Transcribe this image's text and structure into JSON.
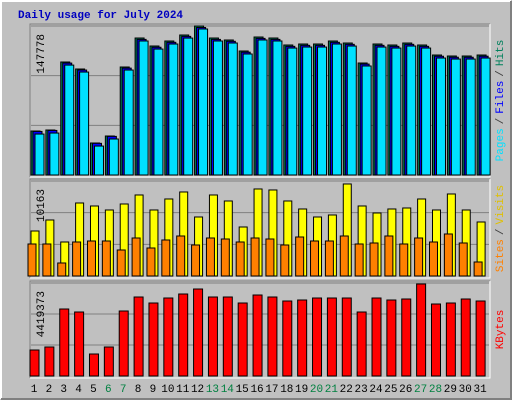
{
  "title": "Daily usage for July 2024",
  "legend_separator": "/",
  "chart_data": [
    {
      "type": "bar",
      "ylim": [
        0,
        147778
      ],
      "yticks": [
        147778
      ],
      "series": [
        {
          "name": "Pages",
          "color": "#00e0ff",
          "values": [
            40600,
            41600,
            109000,
            102100,
            28700,
            35700,
            104100,
            132900,
            124900,
            129900,
            135800,
            144800,
            132900,
            130900,
            120000,
            133900,
            132900,
            125900,
            126900,
            126900,
            129900,
            127900,
            108100,
            126900,
            125900,
            127900,
            125900,
            116000,
            115000,
            115000,
            116000
          ]
        },
        {
          "name": "Files",
          "color": "#0000ff",
          "values": [
            43200,
            44200,
            111000,
            104100,
            31400,
            38300,
            106000,
            134500,
            126700,
            131600,
            137500,
            146300,
            134500,
            132600,
            121800,
            135500,
            134500,
            127600,
            128600,
            128600,
            131600,
            129600,
            110000,
            128600,
            127600,
            129600,
            127600,
            117800,
            116800,
            116800,
            117800
          ]
        },
        {
          "name": "Hits",
          "color": "#00805c",
          "values": [
            43640,
            44630,
            112070,
            105130,
            31740,
            38680,
            107110,
            135870,
            127940,
            132900,
            138850,
            147778,
            135870,
            133890,
            122980,
            136860,
            135870,
            128930,
            129920,
            129920,
            132900,
            130910,
            111080,
            129920,
            128930,
            130910,
            128930,
            119010,
            118020,
            118020,
            119010
          ]
        }
      ]
    },
    {
      "type": "bar",
      "ylim": [
        0,
        10163
      ],
      "yticks": [
        10163
      ],
      "series": [
        {
          "name": "Sites",
          "color": "#ff8000",
          "values": [
            3424,
            3424,
            1391,
            3638,
            3745,
            3745,
            2782,
            4066,
            2996,
            3852,
            4280,
            3317,
            4066,
            3959,
            3638,
            4066,
            3959,
            3317,
            4173,
            3745,
            3745,
            4280,
            3424,
            3531,
            4280,
            3424,
            4066,
            3638,
            4494,
            3531,
            1498
          ]
        },
        {
          "name": "Visits",
          "color": "#ffff00",
          "values": [
            4815,
            5992,
            3638,
            7811,
            7490,
            7062,
            7704,
            8667,
            7062,
            8239,
            8988,
            6313,
            8667,
            8025,
            5243,
            9309,
            9202,
            8025,
            7169,
            6313,
            6527,
            9844,
            7490,
            6741,
            7169,
            7276,
            8239,
            7062,
            8774,
            7062,
            5778
          ]
        }
      ]
    },
    {
      "type": "bar",
      "ylim": [
        0,
        4419373
      ],
      "yticks": [
        4419373
      ],
      "categories": [
        "1",
        "2",
        "3",
        "4",
        "5",
        "6",
        "7",
        "8",
        "9",
        "10",
        "11",
        "12",
        "13",
        "14",
        "15",
        "16",
        "17",
        "18",
        "19",
        "20",
        "21",
        "22",
        "23",
        "24",
        "25",
        "26",
        "27",
        "28",
        "29",
        "30",
        "31"
      ],
      "category_colors": [
        "#000000",
        "#000000",
        "#000000",
        "#000000",
        "#000000",
        "#008040",
        "#008040",
        "#000000",
        "#000000",
        "#000000",
        "#000000",
        "#000000",
        "#008040",
        "#008040",
        "#000000",
        "#000000",
        "#000000",
        "#000000",
        "#000000",
        "#008040",
        "#008040",
        "#000000",
        "#000000",
        "#000000",
        "#000000",
        "#000000",
        "#008040",
        "#008040",
        "#000000",
        "#000000",
        "#000000"
      ],
      "series": [
        {
          "name": "KBytes",
          "color": "#ff0000",
          "values": [
            1235520,
            1378080,
            3183840,
            3041280,
            1045440,
            1378080,
            3088800,
            3754080,
            3468960,
            3706560,
            3896640,
            4134240,
            3754080,
            3754080,
            3468960,
            3849120,
            3754080,
            3564000,
            3611520,
            3706560,
            3706560,
            3706560,
            3041280,
            3706560,
            3611520,
            3659040,
            4371840,
            3421440,
            3468960,
            3659040,
            3564000
          ]
        }
      ]
    }
  ]
}
